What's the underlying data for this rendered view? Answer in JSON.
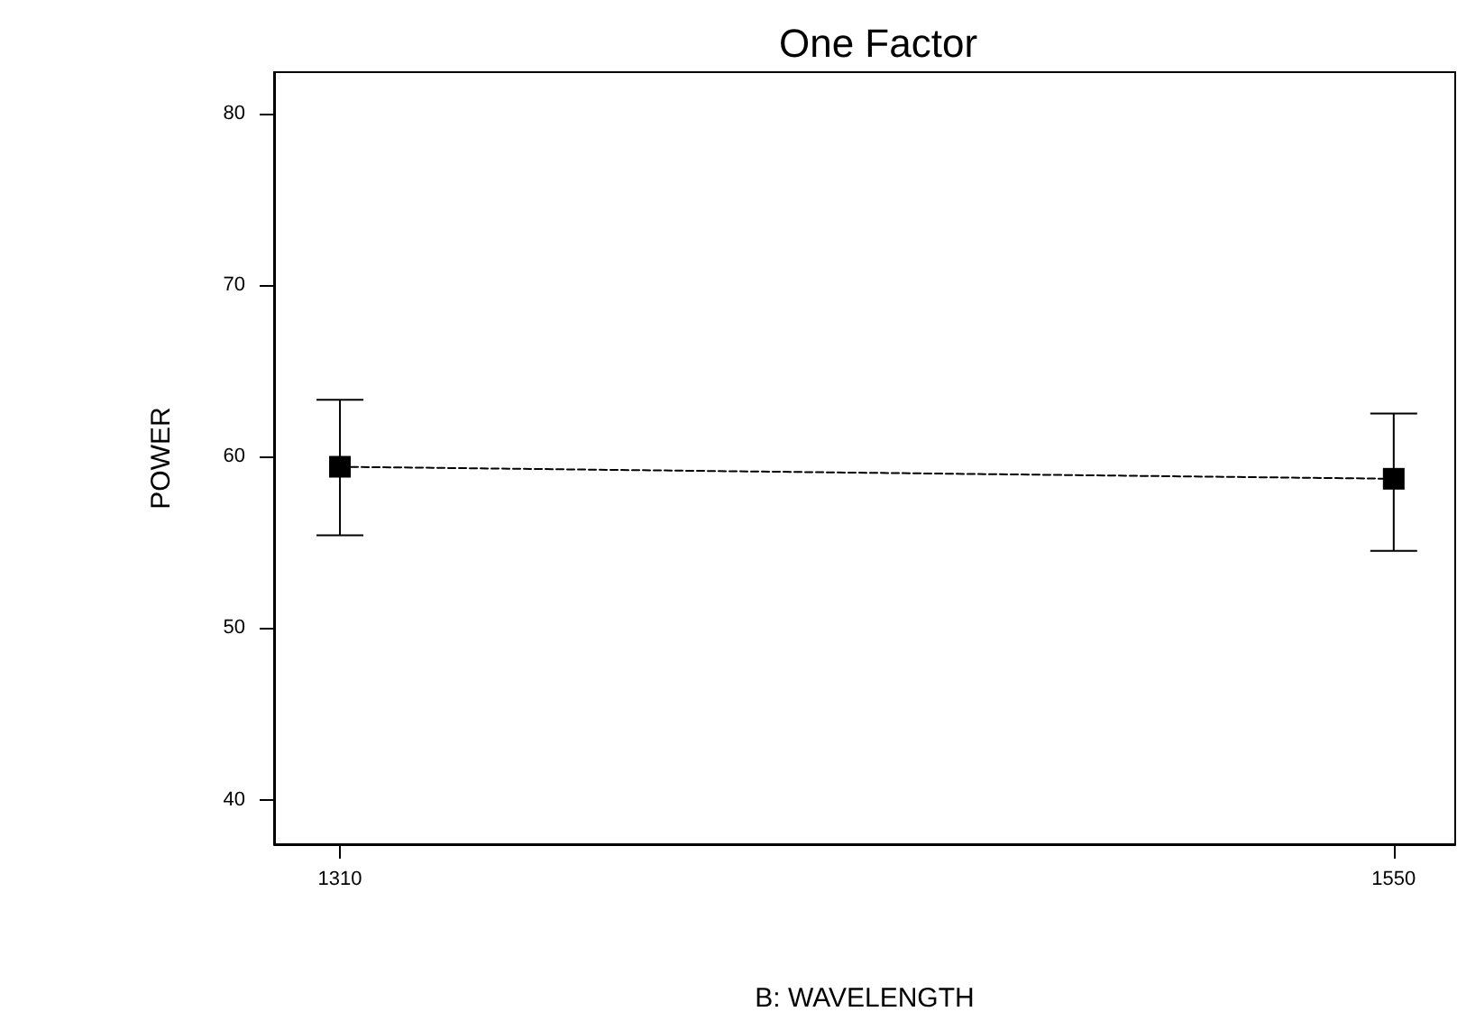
{
  "chart_data": {
    "type": "line",
    "title": "One Factor",
    "xlabel": "B: WAVELENGTH",
    "ylabel": "POWER",
    "x": [
      1310,
      1550
    ],
    "series": [
      {
        "color": "#000000",
        "values": [
          59.4,
          58.7
        ],
        "errors": [
          [
            55.4,
            63.3
          ],
          [
            54.5,
            62.5
          ]
        ]
      }
    ],
    "xlim": [
      1295,
      1564
    ],
    "ylim": [
      37.4,
      82.4
    ],
    "xticks": [
      1310,
      1550
    ],
    "yticks": [
      40,
      50,
      60,
      70,
      80
    ],
    "marker": "square",
    "line_style": "dashed"
  }
}
